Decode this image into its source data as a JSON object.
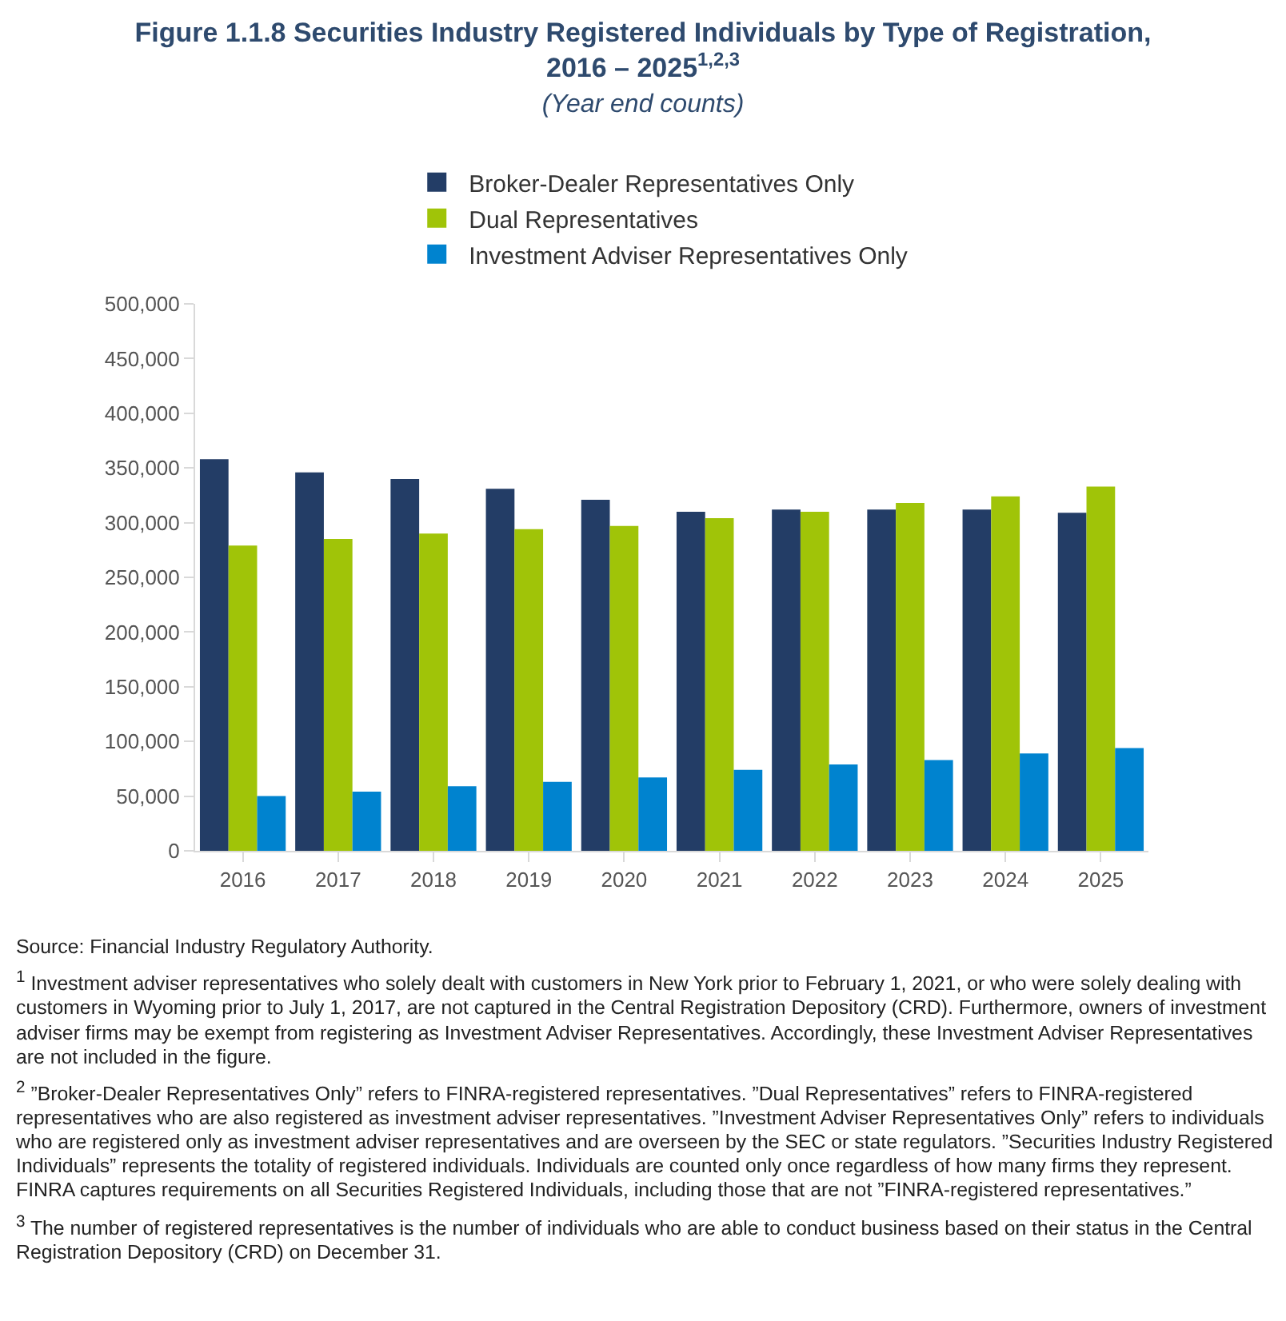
{
  "chart_data": {
    "type": "bar",
    "title": "Figure 1.1.8 Securities Industry Registered Individuals by Type of Registration, 2016 – 2025$^{1,2,3}$",
    "subtitle": "(Year end counts)",
    "categories": [
      "2016",
      "2017",
      "2018",
      "2019",
      "2020",
      "2021",
      "2022",
      "2023",
      "2024",
      "2025"
    ],
    "series": [
      {
        "name": "Broker-Dealer Representatives Only",
        "color": "#233d66",
        "values": [
          358000,
          346000,
          340000,
          331000,
          321000,
          310000,
          312000,
          312000,
          312000,
          309000
        ]
      },
      {
        "name": "Dual Representatives",
        "color": "#a0c408",
        "values": [
          279000,
          285000,
          290000,
          294000,
          297000,
          304000,
          310000,
          318000,
          324000,
          333000
        ]
      },
      {
        "name": "Investment Adviser Representatives Only",
        "color": "#0083cf",
        "values": [
          50000,
          54000,
          59000,
          63000,
          67000,
          74000,
          79000,
          83000,
          89000,
          94000
        ]
      }
    ],
    "ylim": [
      0,
      500000
    ],
    "yticks": [
      {
        "value": 0,
        "label": "0"
      },
      {
        "value": 50000,
        "label": "50,000"
      },
      {
        "value": 100000,
        "label": "100,000"
      },
      {
        "value": 150000,
        "label": "150,000"
      },
      {
        "value": 200000,
        "label": "200,000"
      },
      {
        "value": 250000,
        "label": "250,000"
      },
      {
        "value": 300000,
        "label": "300,000"
      },
      {
        "value": 350000,
        "label": "350,000"
      },
      {
        "value": 400000,
        "label": "400,000"
      },
      {
        "value": 450000,
        "label": "450,000"
      },
      {
        "value": 500000,
        "label": "500,000"
      }
    ],
    "legend": "top",
    "annotations": [
      "Source: Financial Industry Regulatory Authority.",
      "$^{1}$ Investment adviser representatives who solely dealt with customers in New York prior to February 1, 2021, or who were solely dealing with customers in Wyoming prior to July 1, 2017, are not captured in the Central Registration Depository (CRD). Furthermore, owners of investment adviser firms may be exempt from registering as Investment Adviser Representatives. Accordingly, these Investment Adviser Representatives are not included in the figure.",
      "$^{2}$ ”Broker-Dealer Representatives Only” refers to FINRA-registered representatives. ”Dual Representatives” refers to FINRA-registered representatives who are also registered as investment adviser representatives. ”Investment Adviser Representatives Only” refers to individuals who are registered only as investment adviser representatives and are overseen by the SEC or state regulators. ”Securities Industry Registered Individuals” represents the totality of registered individuals. Individuals are counted only once regardless of how many firms they represent. FINRA captures requirements on all Securities Registered Individuals, including those that are not ”FINRA-registered representatives.”",
      "$^{3}$ The number of registered representatives is the number of individuals who are able to conduct business based on their status in the Central Registration Depository (CRD) on December 31."
    ]
  }
}
